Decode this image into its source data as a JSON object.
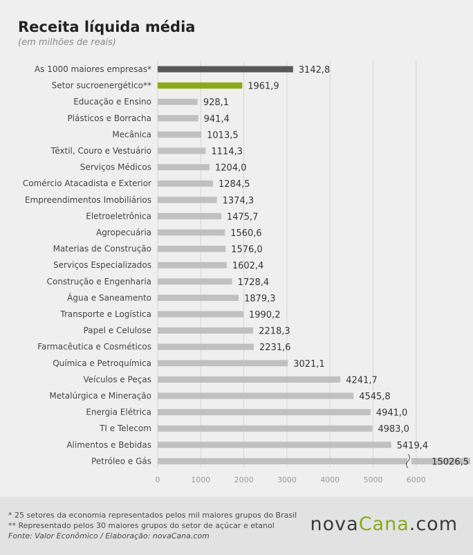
{
  "chart_data": {
    "type": "bar",
    "orientation": "horizontal",
    "title": "Receita líquida média",
    "subtitle": "(em milhões de reais)",
    "xlim": [
      0,
      6500
    ],
    "xticks": [
      0,
      1000,
      2000,
      3000,
      4000,
      5000,
      6000
    ],
    "grid": true,
    "axis_break_on": "Petróleo e Gás",
    "categories": [
      "As 1000 maiores empresas*",
      "Setor sucroenergético**",
      "Educação e Ensino",
      "Plásticos e Borracha",
      "Mecânica",
      "Têxtil, Couro e Vestuário",
      "Serviços Médicos",
      "Comércio Atacadista e Exterior",
      "Empreendimentos Imobiliários",
      "Eletroeletrônica",
      "Agropecuária",
      "Materias de Construção",
      "Serviços Especializados",
      "Construção e Engenharia",
      "Água e Saneamento",
      "Transporte e Logística",
      "Papel e Celulose",
      "Farmacêutica e Cosméticos",
      "Química e Petroquímica",
      "Veículos e Peças",
      "Metalúrgica e Mineração",
      "Energia Elétrica",
      "TI e Telecom",
      "Alimentos e Bebidas",
      "Petróleo e Gás"
    ],
    "values": [
      3142.8,
      1961.9,
      928.1,
      941.4,
      1013.5,
      1114.3,
      1204.0,
      1284.5,
      1374.3,
      1475.7,
      1560.6,
      1576.0,
      1602.4,
      1728.4,
      1879.3,
      1990.2,
      2218.3,
      2231.6,
      3021.1,
      4241.7,
      4545.8,
      4941.0,
      4983.0,
      5419.4,
      15026.5
    ],
    "value_labels": [
      "3142,8",
      "1961,9",
      "928,1",
      "941,4",
      "1013,5",
      "1114,3",
      "1204,0",
      "1284,5",
      "1374,3",
      "1475,7",
      "1560,6",
      "1576,0",
      "1602,4",
      "1728,4",
      "1879,3",
      "1990,2",
      "2218,3",
      "2231,6",
      "3021,1",
      "4241,7",
      "4545,8",
      "4941,0",
      "4983,0",
      "5419,4",
      "15026,5"
    ],
    "bar_colors": [
      "#595959",
      "#8aaa1a",
      "#c0c0c0"
    ]
  },
  "footer": {
    "note1": "* 25 setores da economia representados pelos mil maiores grupos do Brasil",
    "note2": "** Representado pelos 30 maiores grupos do setor de açúcar e etanol",
    "source": "Fonte: Valor Econômico / Elaboração: novaCana.com",
    "brand_part1": "nova",
    "brand_part2": "Cana",
    "brand_part3": ".com"
  }
}
